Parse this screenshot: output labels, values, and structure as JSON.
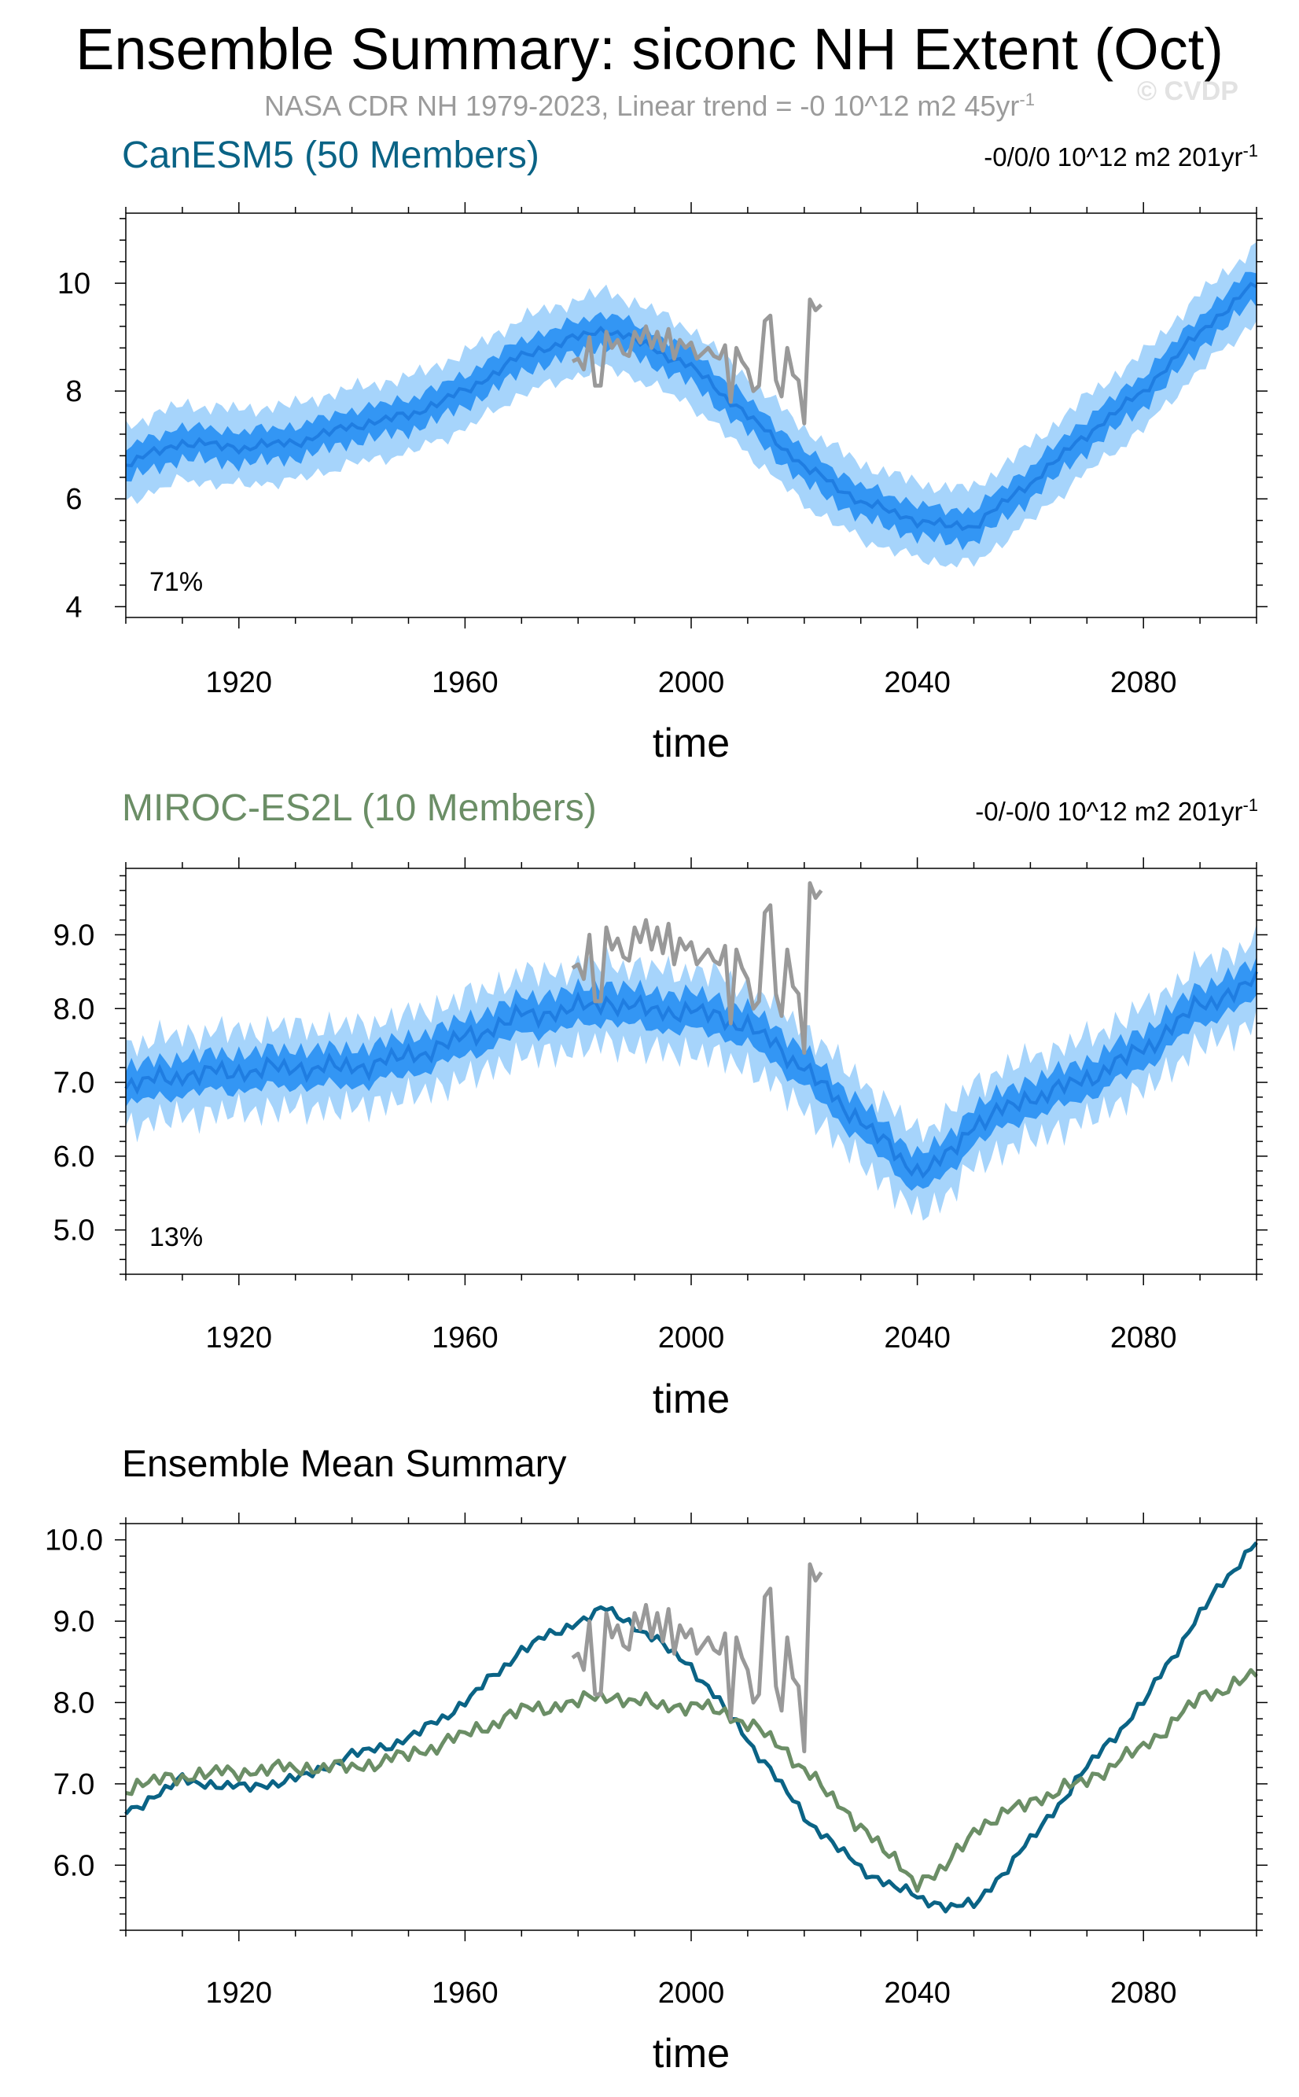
{
  "title": "Ensemble Summary: siconc NH Extent (Oct)",
  "subtitle": {
    "main": "NASA CDR NH 1979-2023, Linear trend = -0 10^12 m2 45yr",
    "exponent": "-1"
  },
  "watermark": "© CVDP",
  "colors": {
    "outer_band": "#a6d4fb",
    "inner_band": "#3396f4",
    "ensemble_mean": "#1f7de1",
    "observations": "#999999",
    "canesm5_title": "#0a6385",
    "miroc_title": "#6b8e66",
    "axis": "#000000"
  },
  "chart_data": [
    {
      "type": "line",
      "panel": "CanESM5",
      "title": "CanESM5 (50 Members)",
      "trend_label": "-0/0/0 10^12 m2 201yr",
      "trend_exponent": "-1",
      "annotation": "71%",
      "xlabel": "time",
      "ylabel": "",
      "xlim": [
        1900,
        2100
      ],
      "ylim": [
        3.8,
        11.3
      ],
      "xticks": [
        1920,
        1960,
        2000,
        2040,
        2080
      ],
      "xtick_labels": [
        "1920",
        "1960",
        "2000",
        "2040",
        "2080"
      ],
      "yticks": [
        4,
        6,
        8,
        10
      ],
      "ytick_labels": [
        "4",
        "6",
        "8",
        "10"
      ],
      "series": [
        {
          "name": "ensemble_mean",
          "x": [
            1900,
            1910,
            1920,
            1930,
            1940,
            1950,
            1960,
            1970,
            1980,
            1985,
            1990,
            2000,
            2010,
            2020,
            2030,
            2040,
            2045,
            2050,
            2060,
            2070,
            2080,
            2090,
            2100
          ],
          "values": [
            6.65,
            7.05,
            6.95,
            7.05,
            7.35,
            7.55,
            8.0,
            8.65,
            9.0,
            9.15,
            8.95,
            8.45,
            7.55,
            6.6,
            5.95,
            5.6,
            5.5,
            5.5,
            6.3,
            7.2,
            8.0,
            9.1,
            10.0
          ]
        },
        {
          "name": "inner_spread",
          "spread": 0.3
        },
        {
          "name": "outer_spread",
          "spread": 0.7
        },
        {
          "name": "observations",
          "x": [
            1979,
            1980,
            1981,
            1982,
            1983,
            1984,
            1985,
            1986,
            1987,
            1988,
            1989,
            1990,
            1991,
            1992,
            1993,
            1994,
            1995,
            1996,
            1997,
            1998,
            1999,
            2000,
            2001,
            2002,
            2003,
            2004,
            2005,
            2006,
            2007,
            2008,
            2009,
            2010,
            2011,
            2012,
            2013,
            2014,
            2015,
            2016,
            2017,
            2018,
            2019,
            2020,
            2021,
            2022,
            2023
          ],
          "values": [
            8.55,
            8.6,
            8.4,
            9.0,
            8.1,
            8.1,
            9.1,
            8.8,
            8.95,
            8.7,
            8.65,
            9.1,
            8.9,
            9.2,
            8.8,
            9.1,
            8.75,
            9.15,
            8.6,
            8.95,
            8.8,
            8.9,
            8.6,
            8.7,
            8.8,
            8.65,
            8.6,
            8.85,
            7.8,
            8.8,
            8.55,
            8.4,
            8.0,
            8.1,
            9.3,
            9.4,
            8.2,
            7.9,
            8.8,
            8.3,
            8.2,
            7.4,
            9.7,
            9.5,
            9.6
          ]
        }
      ]
    },
    {
      "type": "line",
      "panel": "MIROC-ES2L",
      "title": "MIROC-ES2L (10 Members)",
      "trend_label": "-0/-0/0 10^12 m2 201yr",
      "trend_exponent": "-1",
      "annotation": "13%",
      "xlabel": "time",
      "ylabel": "",
      "xlim": [
        1900,
        2100
      ],
      "ylim": [
        4.4,
        9.9
      ],
      "xticks": [
        1920,
        1960,
        2000,
        2040,
        2080
      ],
      "xtick_labels": [
        "1920",
        "1960",
        "2000",
        "2040",
        "2080"
      ],
      "yticks": [
        5.0,
        6.0,
        7.0,
        8.0,
        9.0
      ],
      "ytick_labels": [
        "5.0",
        "6.0",
        "7.0",
        "8.0",
        "9.0"
      ],
      "series": [
        {
          "name": "ensemble_mean",
          "x": [
            1900,
            1910,
            1920,
            1930,
            1940,
            1950,
            1960,
            1970,
            1980,
            1985,
            1990,
            2000,
            2005,
            2010,
            2015,
            2020,
            2025,
            2030,
            2035,
            2040,
            2045,
            2050,
            2055,
            2060,
            2065,
            2070,
            2080,
            2090,
            2100
          ],
          "values": [
            6.95,
            7.1,
            7.15,
            7.2,
            7.2,
            7.35,
            7.6,
            7.9,
            8.0,
            8.1,
            8.0,
            7.95,
            7.9,
            7.75,
            7.5,
            7.2,
            6.8,
            6.5,
            6.1,
            5.8,
            5.95,
            6.45,
            6.6,
            6.8,
            6.9,
            7.05,
            7.45,
            8.05,
            8.35
          ]
        },
        {
          "name": "inner_spread",
          "spread": 0.25
        },
        {
          "name": "outer_spread",
          "spread": 0.55
        },
        {
          "name": "observations",
          "x": [
            1979,
            1980,
            1981,
            1982,
            1983,
            1984,
            1985,
            1986,
            1987,
            1988,
            1989,
            1990,
            1991,
            1992,
            1993,
            1994,
            1995,
            1996,
            1997,
            1998,
            1999,
            2000,
            2001,
            2002,
            2003,
            2004,
            2005,
            2006,
            2007,
            2008,
            2009,
            2010,
            2011,
            2012,
            2013,
            2014,
            2015,
            2016,
            2017,
            2018,
            2019,
            2020,
            2021,
            2022,
            2023
          ],
          "values": [
            8.55,
            8.6,
            8.4,
            9.0,
            8.1,
            8.1,
            9.1,
            8.8,
            8.95,
            8.7,
            8.65,
            9.1,
            8.9,
            9.2,
            8.8,
            9.1,
            8.75,
            9.15,
            8.6,
            8.95,
            8.8,
            8.9,
            8.6,
            8.7,
            8.8,
            8.65,
            8.6,
            8.85,
            7.8,
            8.8,
            8.55,
            8.4,
            8.0,
            8.1,
            9.3,
            9.4,
            8.2,
            7.9,
            8.8,
            8.3,
            8.2,
            7.4,
            9.7,
            9.5,
            9.6
          ]
        }
      ]
    },
    {
      "type": "line",
      "panel": "Ensemble Mean Summary",
      "title": "Ensemble Mean Summary",
      "xlabel": "time",
      "ylabel": "",
      "xlim": [
        1900,
        2100
      ],
      "ylim": [
        5.2,
        10.2
      ],
      "xticks": [
        1920,
        1960,
        2000,
        2040,
        2080
      ],
      "xtick_labels": [
        "1920",
        "1960",
        "2000",
        "2040",
        "2080"
      ],
      "yticks": [
        6.0,
        7.0,
        8.0,
        9.0,
        10.0
      ],
      "ytick_labels": [
        "6.0",
        "7.0",
        "8.0",
        "9.0",
        "10.0"
      ],
      "series": [
        {
          "name": "CanESM5",
          "color": "#0a6385",
          "x": [
            1900,
            1910,
            1920,
            1930,
            1940,
            1950,
            1960,
            1970,
            1980,
            1985,
            1990,
            2000,
            2010,
            2020,
            2030,
            2040,
            2045,
            2050,
            2060,
            2070,
            2080,
            2090,
            2100
          ],
          "values": [
            6.65,
            7.05,
            6.95,
            7.05,
            7.35,
            7.55,
            8.0,
            8.65,
            9.0,
            9.15,
            8.95,
            8.45,
            7.55,
            6.6,
            5.95,
            5.6,
            5.5,
            5.5,
            6.3,
            7.2,
            8.0,
            9.1,
            10.0
          ]
        },
        {
          "name": "MIROC-ES2L",
          "color": "#6b8e66",
          "x": [
            1900,
            1910,
            1920,
            1930,
            1940,
            1950,
            1960,
            1970,
            1980,
            1985,
            1990,
            2000,
            2005,
            2010,
            2015,
            2020,
            2025,
            2030,
            2035,
            2040,
            2045,
            2050,
            2055,
            2060,
            2065,
            2070,
            2080,
            2090,
            2100
          ],
          "values": [
            6.95,
            7.1,
            7.15,
            7.2,
            7.2,
            7.35,
            7.6,
            7.9,
            8.0,
            8.1,
            8.0,
            7.95,
            7.9,
            7.75,
            7.5,
            7.2,
            6.8,
            6.5,
            6.1,
            5.8,
            5.95,
            6.45,
            6.6,
            6.8,
            6.9,
            7.05,
            7.45,
            8.05,
            8.35
          ]
        },
        {
          "name": "observations",
          "color": "#999999",
          "x": [
            1979,
            1980,
            1981,
            1982,
            1983,
            1984,
            1985,
            1986,
            1987,
            1988,
            1989,
            1990,
            1991,
            1992,
            1993,
            1994,
            1995,
            1996,
            1997,
            1998,
            1999,
            2000,
            2001,
            2002,
            2003,
            2004,
            2005,
            2006,
            2007,
            2008,
            2009,
            2010,
            2011,
            2012,
            2013,
            2014,
            2015,
            2016,
            2017,
            2018,
            2019,
            2020,
            2021,
            2022,
            2023
          ],
          "values": [
            8.55,
            8.6,
            8.4,
            9.0,
            8.1,
            8.1,
            9.1,
            8.8,
            8.95,
            8.7,
            8.65,
            9.1,
            8.9,
            9.2,
            8.8,
            9.1,
            8.75,
            9.15,
            8.6,
            8.95,
            8.8,
            8.9,
            8.6,
            8.7,
            8.8,
            8.65,
            8.6,
            8.85,
            7.8,
            8.8,
            8.55,
            8.4,
            8.0,
            8.1,
            9.3,
            9.4,
            8.2,
            7.9,
            8.8,
            8.3,
            8.2,
            7.4,
            9.7,
            9.5,
            9.6
          ]
        }
      ]
    }
  ]
}
